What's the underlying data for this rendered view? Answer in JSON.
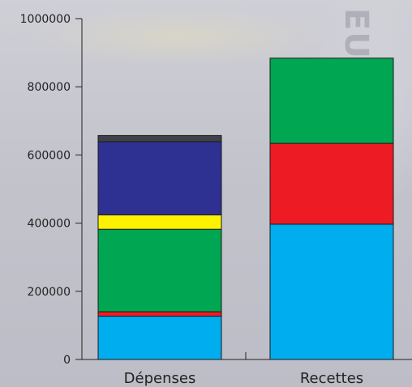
{
  "chart_data": {
    "type": "bar",
    "stacked": true,
    "categories": [
      "Dépenses",
      "Recettes"
    ],
    "ylim": [
      0,
      1000000
    ],
    "yticks": [
      0,
      200000,
      400000,
      600000,
      800000,
      1000000
    ],
    "ytick_labels": [
      "0",
      "200000",
      "400000",
      "600000",
      "800000",
      "1000000"
    ],
    "title": "",
    "xlabel": "",
    "ylabel": "",
    "grid": false,
    "legend": "none",
    "series": [
      {
        "color": "#00adef",
        "values": [
          127000,
          397000
        ]
      },
      {
        "color": "#ed1c24",
        "values": [
          13000,
          237000
        ]
      },
      {
        "color": "#00a651",
        "values": [
          242000,
          250000
        ]
      },
      {
        "color": "#fff200",
        "values": [
          42000,
          0
        ]
      },
      {
        "color": "#2e3192",
        "values": [
          215000,
          0
        ]
      },
      {
        "color": "#404048",
        "values": [
          18000,
          0
        ]
      }
    ]
  },
  "background": {
    "watermark_text": "EURO"
  }
}
